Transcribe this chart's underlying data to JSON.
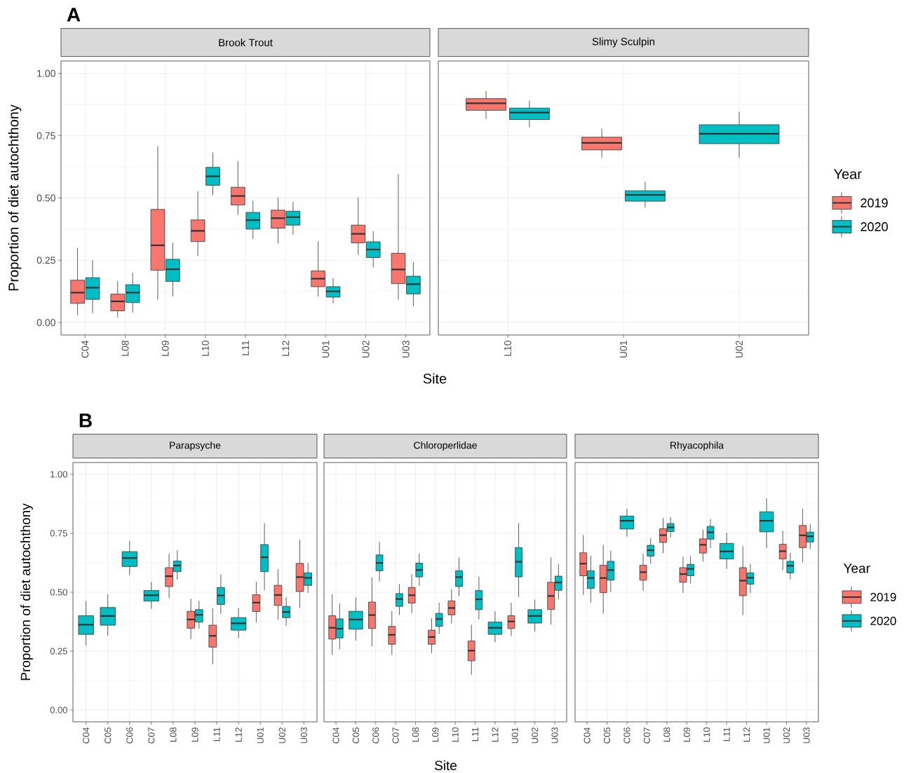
{
  "chart_data": [
    {
      "type": "box",
      "title": "Brook Trout",
      "ylabel": "Proportion of diet autochthony",
      "xlabel": "Site",
      "annotations": [
        "A"
      ],
      "grid": true,
      "categories": [
        "C04",
        "L08",
        "L09",
        "L10",
        "L11",
        "L12",
        "U01",
        "U02",
        "U03"
      ],
      "ylim": [
        -0.05,
        1.05
      ],
      "yticks": [
        {
          "value": 0,
          "label": "0.00"
        },
        {
          "value": 0.25,
          "label": "0.25"
        },
        {
          "value": 0.5,
          "label": "0.50"
        },
        {
          "value": 0.75,
          "label": "0.75"
        },
        {
          "value": 1,
          "label": "1.00"
        }
      ],
      "series": [
        {
          "color": "#f8766d",
          "boxes": [
            {
              "low": 0.03,
              "q1": 0.077,
              "median": 0.12,
              "q3": 0.17,
              "high": 0.3
            },
            {
              "low": 0.02,
              "q1": 0.047,
              "median": 0.085,
              "q3": 0.114,
              "high": 0.166
            },
            {
              "low": 0.092,
              "q1": 0.21,
              "median": 0.31,
              "q3": 0.454,
              "high": 0.707
            },
            {
              "low": 0.268,
              "q1": 0.325,
              "median": 0.368,
              "q3": 0.412,
              "high": 0.527
            },
            {
              "low": 0.432,
              "q1": 0.472,
              "median": 0.508,
              "q3": 0.543,
              "high": 0.649
            },
            {
              "low": 0.318,
              "q1": 0.379,
              "median": 0.419,
              "q3": 0.451,
              "high": 0.502
            },
            {
              "low": 0.104,
              "q1": 0.144,
              "median": 0.176,
              "q3": 0.207,
              "high": 0.326
            },
            {
              "low": 0.271,
              "q1": 0.32,
              "median": 0.356,
              "q3": 0.391,
              "high": 0.502
            },
            {
              "low": 0.092,
              "q1": 0.156,
              "median": 0.213,
              "q3": 0.278,
              "high": 0.595
            }
          ]
        },
        {
          "color": "#00bfc4",
          "boxes": [
            {
              "low": 0.037,
              "q1": 0.093,
              "median": 0.14,
              "q3": 0.18,
              "high": 0.25
            },
            {
              "low": 0.04,
              "q1": 0.08,
              "median": 0.12,
              "q3": 0.152,
              "high": 0.2
            },
            {
              "low": 0.104,
              "q1": 0.165,
              "median": 0.214,
              "q3": 0.254,
              "high": 0.32
            },
            {
              "low": 0.511,
              "q1": 0.551,
              "median": 0.587,
              "q3": 0.623,
              "high": 0.683
            },
            {
              "low": 0.336,
              "q1": 0.375,
              "median": 0.411,
              "q3": 0.442,
              "high": 0.489
            },
            {
              "low": 0.353,
              "q1": 0.391,
              "median": 0.423,
              "q3": 0.447,
              "high": 0.485
            },
            {
              "low": 0.078,
              "q1": 0.102,
              "median": 0.125,
              "q3": 0.144,
              "high": 0.178
            },
            {
              "low": 0.221,
              "q1": 0.261,
              "median": 0.293,
              "q3": 0.324,
              "high": 0.367
            },
            {
              "low": 0.066,
              "q1": 0.115,
              "median": 0.154,
              "q3": 0.186,
              "high": 0.242
            }
          ]
        }
      ]
    },
    {
      "type": "box",
      "title": "Slimy Sculpin",
      "legend": "right",
      "legend_title": "Year",
      "grid": true,
      "tick_labels": "x",
      "categories": [
        "L10",
        "U01",
        "U02"
      ],
      "ylim": [
        -0.05,
        1.05
      ],
      "yticks": [
        0,
        0.25,
        0.5,
        0.75,
        1
      ],
      "series": [
        {
          "name": "2019",
          "color": "#f8766d",
          "boxes": [
            {
              "low": 0.817,
              "q1": 0.852,
              "median": 0.88,
              "q3": 0.899,
              "high": 0.929
            },
            {
              "low": 0.662,
              "q1": 0.693,
              "median": 0.721,
              "q3": 0.744,
              "high": 0.778
            },
            null
          ]
        },
        {
          "name": "2020",
          "color": "#00bfc4",
          "boxes": [
            {
              "low": 0.784,
              "q1": 0.815,
              "median": 0.843,
              "q3": 0.861,
              "high": 0.891
            },
            {
              "low": 0.461,
              "q1": 0.487,
              "median": 0.512,
              "q3": 0.529,
              "high": 0.565
            },
            {
              "low": 0.662,
              "q1": 0.718,
              "median": 0.758,
              "q3": 0.794,
              "high": 0.846
            }
          ]
        }
      ]
    },
    {
      "type": "box",
      "title": "Parapsyche",
      "ylabel": "Proportion of diet autochthony",
      "annotations": [
        "B"
      ],
      "grid": true,
      "categories": [
        "C04",
        "C05",
        "C06",
        "C07",
        "L08",
        "L09",
        "L11",
        "L12",
        "U01",
        "U02",
        "U03"
      ],
      "ylim": [
        -0.05,
        1.05
      ],
      "yticks": [
        {
          "value": 0,
          "label": "0.00"
        },
        {
          "value": 0.25,
          "label": "0.25"
        },
        {
          "value": 0.5,
          "label": "0.50"
        },
        {
          "value": 0.75,
          "label": "0.75"
        },
        {
          "value": 1,
          "label": "1.00"
        }
      ],
      "series": [
        {
          "color": "#f8766d",
          "boxes": [
            null,
            null,
            null,
            null,
            {
              "low": 0.475,
              "q1": 0.524,
              "median": 0.568,
              "q3": 0.604,
              "high": 0.663
            },
            {
              "low": 0.301,
              "q1": 0.347,
              "median": 0.384,
              "q3": 0.419,
              "high": 0.472
            },
            {
              "low": 0.194,
              "q1": 0.267,
              "median": 0.315,
              "q3": 0.36,
              "high": 0.432
            },
            null,
            {
              "low": 0.372,
              "q1": 0.418,
              "median": 0.456,
              "q3": 0.489,
              "high": 0.543
            },
            {
              "low": 0.384,
              "q1": 0.444,
              "median": 0.488,
              "q3": 0.529,
              "high": 0.597
            },
            {
              "low": 0.434,
              "q1": 0.503,
              "median": 0.564,
              "q3": 0.622,
              "high": 0.722
            }
          ]
        },
        {
          "color": "#00bfc4",
          "boxes": [
            {
              "low": 0.274,
              "q1": 0.321,
              "median": 0.362,
              "q3": 0.4,
              "high": 0.463
            },
            {
              "low": 0.315,
              "q1": 0.36,
              "median": 0.399,
              "q3": 0.435,
              "high": 0.491
            },
            {
              "low": 0.573,
              "q1": 0.609,
              "median": 0.645,
              "q3": 0.672,
              "high": 0.717
            },
            {
              "low": 0.429,
              "q1": 0.462,
              "median": 0.487,
              "q3": 0.507,
              "high": 0.544
            },
            {
              "low": 0.553,
              "q1": 0.587,
              "median": 0.613,
              "q3": 0.632,
              "high": 0.677
            },
            {
              "low": 0.345,
              "q1": 0.373,
              "median": 0.404,
              "q3": 0.426,
              "high": 0.463
            },
            {
              "low": 0.408,
              "q1": 0.448,
              "median": 0.486,
              "q3": 0.52,
              "high": 0.575
            },
            {
              "low": 0.305,
              "q1": 0.339,
              "median": 0.368,
              "q3": 0.392,
              "high": 0.432
            },
            {
              "low": 0.509,
              "q1": 0.587,
              "median": 0.648,
              "q3": 0.702,
              "high": 0.793
            },
            {
              "low": 0.358,
              "q1": 0.392,
              "median": 0.416,
              "q3": 0.44,
              "high": 0.478
            },
            {
              "low": 0.497,
              "q1": 0.529,
              "median": 0.561,
              "q3": 0.582,
              "high": 0.624
            }
          ]
        }
      ]
    },
    {
      "type": "box",
      "title": "Chloroperlidae",
      "xlabel": "Site",
      "grid": true,
      "tick_labels": "x",
      "categories": [
        "C04",
        "C05",
        "C06",
        "C07",
        "L08",
        "L09",
        "L10",
        "L11",
        "L12",
        "U01",
        "U02",
        "U03"
      ],
      "ylim": [
        -0.05,
        1.05
      ],
      "yticks": [
        0,
        0.25,
        0.5,
        0.75,
        1
      ],
      "series": [
        {
          "color": "#f8766d",
          "boxes": [
            {
              "low": 0.234,
              "q1": 0.301,
              "median": 0.349,
              "q3": 0.4,
              "high": 0.491
            },
            null,
            {
              "low": 0.27,
              "q1": 0.346,
              "median": 0.403,
              "q3": 0.458,
              "high": 0.563
            },
            {
              "low": 0.234,
              "q1": 0.279,
              "median": 0.319,
              "q3": 0.355,
              "high": 0.42
            },
            {
              "low": 0.412,
              "q1": 0.454,
              "median": 0.487,
              "q3": 0.52,
              "high": 0.576
            },
            {
              "low": 0.242,
              "q1": 0.279,
              "median": 0.31,
              "q3": 0.339,
              "high": 0.389
            },
            {
              "low": 0.368,
              "q1": 0.404,
              "median": 0.433,
              "q3": 0.463,
              "high": 0.513
            },
            {
              "low": 0.15,
              "q1": 0.209,
              "median": 0.252,
              "q3": 0.293,
              "high": 0.362
            },
            null,
            {
              "low": 0.315,
              "q1": 0.346,
              "median": 0.376,
              "q3": 0.4,
              "high": 0.455
            },
            null,
            {
              "low": 0.363,
              "q1": 0.427,
              "median": 0.484,
              "q3": 0.542,
              "high": 0.647
            }
          ]
        },
        {
          "color": "#00bfc4",
          "boxes": [
            {
              "low": 0.257,
              "q1": 0.306,
              "median": 0.345,
              "q3": 0.387,
              "high": 0.452
            },
            {
              "low": 0.295,
              "q1": 0.343,
              "median": 0.384,
              "q3": 0.419,
              "high": 0.478
            },
            {
              "low": 0.545,
              "q1": 0.591,
              "median": 0.624,
              "q3": 0.658,
              "high": 0.713
            },
            {
              "low": 0.403,
              "q1": 0.44,
              "median": 0.471,
              "q3": 0.494,
              "high": 0.535
            },
            {
              "low": 0.527,
              "q1": 0.565,
              "median": 0.594,
              "q3": 0.623,
              "high": 0.663
            },
            {
              "low": 0.323,
              "q1": 0.355,
              "median": 0.386,
              "q3": 0.41,
              "high": 0.455
            },
            {
              "low": 0.483,
              "q1": 0.524,
              "median": 0.564,
              "q3": 0.591,
              "high": 0.647
            },
            {
              "low": 0.385,
              "q1": 0.426,
              "median": 0.47,
              "q3": 0.507,
              "high": 0.566
            },
            {
              "low": 0.288,
              "q1": 0.321,
              "median": 0.349,
              "q3": 0.373,
              "high": 0.419
            },
            {
              "low": 0.48,
              "q1": 0.565,
              "median": 0.629,
              "q3": 0.689,
              "high": 0.792
            },
            {
              "low": 0.333,
              "q1": 0.369,
              "median": 0.399,
              "q3": 0.426,
              "high": 0.468
            },
            {
              "low": 0.47,
              "q1": 0.508,
              "median": 0.541,
              "q3": 0.568,
              "high": 0.62
            }
          ]
        }
      ]
    },
    {
      "type": "box",
      "title": "Rhyacophila",
      "legend": "right",
      "legend_title": "Year",
      "grid": true,
      "tick_labels": "x",
      "categories": [
        "C04",
        "C05",
        "C06",
        "C07",
        "L08",
        "L09",
        "L10",
        "L11",
        "L12",
        "U01",
        "U02",
        "U03"
      ],
      "ylim": [
        -0.05,
        1.05
      ],
      "yticks": [
        0,
        0.25,
        0.5,
        0.75,
        1
      ],
      "series": [
        {
          "name": "2019",
          "color": "#f8766d",
          "boxes": [
            {
              "low": 0.488,
              "q1": 0.57,
              "median": 0.621,
              "q3": 0.667,
              "high": 0.743
            },
            {
              "low": 0.409,
              "q1": 0.498,
              "median": 0.56,
              "q3": 0.614,
              "high": 0.7
            },
            null,
            {
              "low": 0.505,
              "q1": 0.551,
              "median": 0.585,
              "q3": 0.614,
              "high": 0.663
            },
            {
              "low": 0.666,
              "q1": 0.711,
              "median": 0.742,
              "q3": 0.769,
              "high": 0.814
            },
            {
              "low": 0.497,
              "q1": 0.542,
              "median": 0.577,
              "q3": 0.604,
              "high": 0.65
            },
            {
              "low": 0.63,
              "q1": 0.666,
              "median": 0.701,
              "q3": 0.726,
              "high": 0.765
            },
            null,
            {
              "low": 0.403,
              "q1": 0.485,
              "median": 0.549,
              "q3": 0.604,
              "high": 0.695
            },
            null,
            {
              "low": 0.594,
              "q1": 0.641,
              "median": 0.674,
              "q3": 0.703,
              "high": 0.761
            },
            {
              "low": 0.626,
              "q1": 0.689,
              "median": 0.741,
              "q3": 0.783,
              "high": 0.854
            }
          ]
        },
        {
          "name": "2020",
          "color": "#00bfc4",
          "boxes": [
            {
              "low": 0.456,
              "q1": 0.516,
              "median": 0.56,
              "q3": 0.591,
              "high": 0.655
            },
            {
              "low": 0.501,
              "q1": 0.551,
              "median": 0.594,
              "q3": 0.631,
              "high": 0.676
            },
            {
              "low": 0.736,
              "q1": 0.768,
              "median": 0.803,
              "q3": 0.823,
              "high": 0.854
            },
            {
              "low": 0.621,
              "q1": 0.653,
              "median": 0.678,
              "q3": 0.699,
              "high": 0.73
            },
            {
              "low": 0.732,
              "q1": 0.757,
              "median": 0.775,
              "q3": 0.791,
              "high": 0.818
            },
            {
              "low": 0.537,
              "q1": 0.57,
              "median": 0.599,
              "q3": 0.618,
              "high": 0.654
            },
            {
              "low": 0.687,
              "q1": 0.725,
              "median": 0.754,
              "q3": 0.779,
              "high": 0.81
            },
            {
              "low": 0.599,
              "q1": 0.641,
              "median": 0.673,
              "q3": 0.707,
              "high": 0.752
            },
            {
              "low": 0.497,
              "q1": 0.534,
              "median": 0.561,
              "q3": 0.582,
              "high": 0.619
            },
            {
              "low": 0.687,
              "q1": 0.756,
              "median": 0.803,
              "q3": 0.841,
              "high": 0.898
            },
            {
              "low": 0.555,
              "q1": 0.582,
              "median": 0.612,
              "q3": 0.631,
              "high": 0.667
            },
            {
              "low": 0.683,
              "q1": 0.713,
              "median": 0.737,
              "q3": 0.755,
              "high": 0.788
            }
          ]
        }
      ]
    }
  ]
}
